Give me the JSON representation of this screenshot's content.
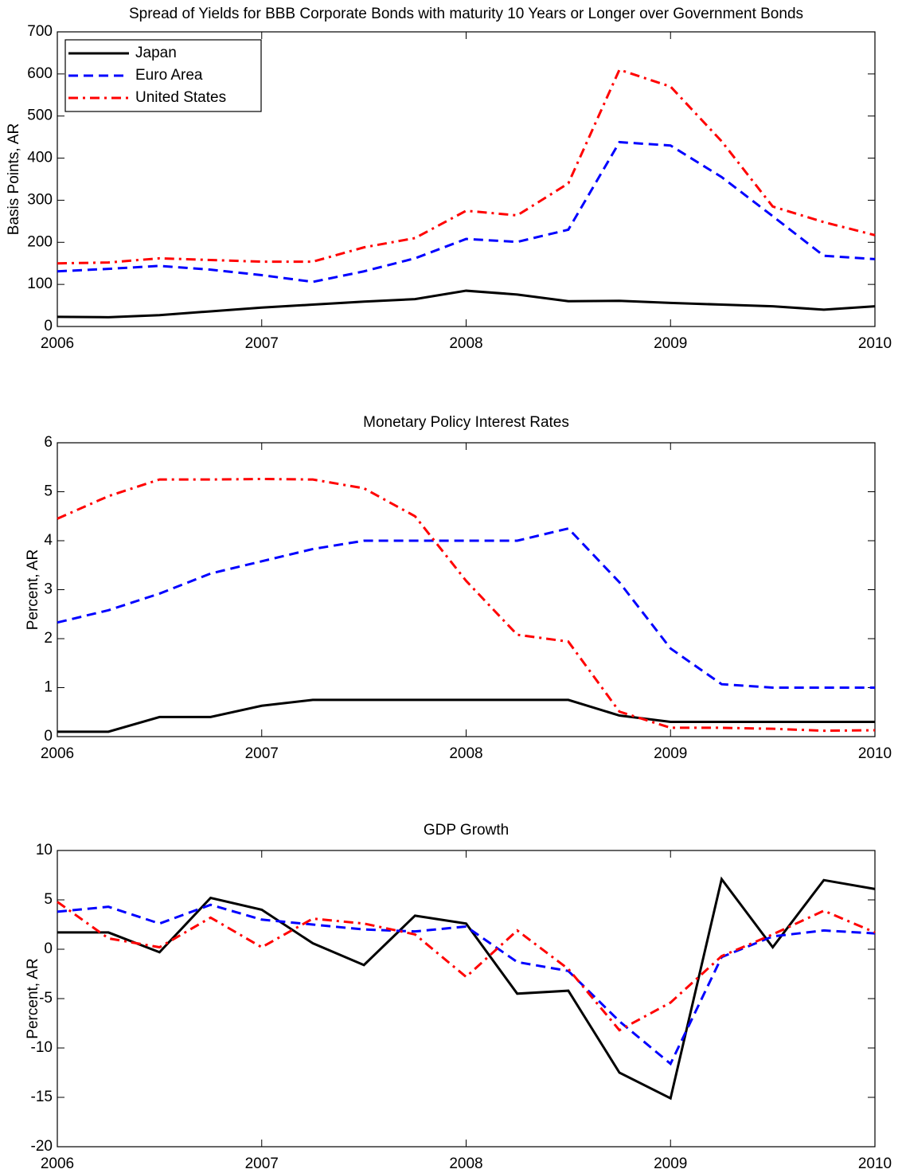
{
  "chart_data": [
    {
      "type": "line",
      "title": "Spread of Yields for BBB Corporate Bonds with maturity 10 Years or Longer over Government Bonds",
      "y_label": "Basis Points, AR",
      "x": [
        2006,
        2006.25,
        2006.5,
        2006.75,
        2007,
        2007.25,
        2007.5,
        2007.75,
        2008,
        2008.25,
        2008.5,
        2008.75,
        2009,
        2009.25,
        2009.5,
        2009.75,
        2010
      ],
      "xlim": [
        2006,
        2010
      ],
      "xticks": [
        2006,
        2007,
        2008,
        2009,
        2010
      ],
      "ylim": [
        0,
        700
      ],
      "yticks": [
        0,
        100,
        200,
        300,
        400,
        500,
        600,
        700
      ],
      "legend": "upper left",
      "series": [
        {
          "name": "Japan",
          "color": "#000000",
          "style": "solid",
          "values": [
            23,
            22,
            27,
            36,
            45,
            52,
            59,
            65,
            85,
            76,
            60,
            61,
            56,
            52,
            48,
            40,
            48
          ]
        },
        {
          "name": "Euro Area",
          "color": "#0000ff",
          "style": "dashed",
          "values": [
            131,
            137,
            144,
            135,
            122,
            106,
            131,
            162,
            208,
            201,
            230,
            438,
            430,
            355,
            262,
            168,
            160
          ]
        },
        {
          "name": "United States",
          "color": "#ff0000",
          "style": "dashdot",
          "values": [
            150,
            152,
            162,
            158,
            154,
            154,
            188,
            210,
            275,
            264,
            340,
            610,
            570,
            440,
            285,
            248,
            217
          ]
        }
      ]
    },
    {
      "type": "line",
      "title": "Monetary Policy Interest Rates",
      "y_label": "Percent, AR",
      "x": [
        2006,
        2006.25,
        2006.5,
        2006.75,
        2007,
        2007.25,
        2007.5,
        2007.75,
        2008,
        2008.25,
        2008.5,
        2008.75,
        2009,
        2009.25,
        2009.5,
        2009.75,
        2010
      ],
      "xlim": [
        2006,
        2010
      ],
      "xticks": [
        2006,
        2007,
        2008,
        2009,
        2010
      ],
      "ylim": [
        0,
        6
      ],
      "yticks": [
        0,
        1,
        2,
        3,
        4,
        5,
        6
      ],
      "series": [
        {
          "color": "#000000",
          "style": "solid",
          "values": [
            0.1,
            0.1,
            0.4,
            0.4,
            0.63,
            0.75,
            0.75,
            0.75,
            0.75,
            0.75,
            0.75,
            0.43,
            0.3,
            0.3,
            0.3,
            0.3,
            0.3
          ]
        },
        {
          "color": "#0000ff",
          "style": "dashed",
          "values": [
            2.33,
            2.58,
            2.92,
            3.33,
            3.58,
            3.83,
            4.0,
            4.0,
            4.0,
            4.0,
            4.25,
            3.15,
            1.8,
            1.07,
            1.0,
            1.0,
            1.0
          ]
        },
        {
          "color": "#ff0000",
          "style": "dashdot",
          "values": [
            4.45,
            4.91,
            5.25,
            5.25,
            5.26,
            5.25,
            5.07,
            4.5,
            3.18,
            2.08,
            1.94,
            0.51,
            0.18,
            0.18,
            0.16,
            0.12,
            0.13
          ]
        }
      ]
    },
    {
      "type": "line",
      "title": "GDP Growth",
      "y_label": "Percent, AR",
      "x": [
        2006,
        2006.25,
        2006.5,
        2006.75,
        2007,
        2007.25,
        2007.5,
        2007.75,
        2008,
        2008.25,
        2008.5,
        2008.75,
        2009,
        2009.25,
        2009.5,
        2009.75,
        2010
      ],
      "xlim": [
        2006,
        2010
      ],
      "xticks": [
        2006,
        2007,
        2008,
        2009,
        2010
      ],
      "ylim": [
        -20,
        10
      ],
      "yticks": [
        -20,
        -15,
        -10,
        -5,
        0,
        5,
        10
      ],
      "series": [
        {
          "color": "#000000",
          "style": "solid",
          "values": [
            1.7,
            1.7,
            -0.3,
            5.2,
            4.0,
            0.6,
            -1.6,
            3.4,
            2.6,
            -4.5,
            -4.2,
            -12.5,
            -15.1,
            7.1,
            0.2,
            7.0,
            6.1
          ]
        },
        {
          "color": "#0000ff",
          "style": "dashed",
          "values": [
            3.8,
            4.3,
            2.6,
            4.5,
            3.0,
            2.5,
            2.0,
            1.8,
            2.3,
            -1.3,
            -2.2,
            -7.3,
            -11.6,
            -0.8,
            1.3,
            1.9,
            1.6
          ]
        },
        {
          "color": "#ff0000",
          "style": "dashdot",
          "values": [
            4.8,
            1.1,
            0.2,
            3.2,
            0.2,
            3.1,
            2.6,
            1.5,
            -2.8,
            1.9,
            -2.0,
            -8.2,
            -5.4,
            -0.7,
            1.5,
            3.9,
            1.7
          ]
        }
      ]
    }
  ]
}
